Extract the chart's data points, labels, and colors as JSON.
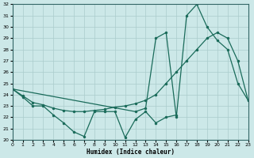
{
  "xlabel": "Humidex (Indice chaleur)",
  "background_color": "#cce8e8",
  "grid_color": "#aacccc",
  "line_color": "#1a6b5a",
  "ylim": [
    20,
    32
  ],
  "xlim": [
    0,
    23
  ],
  "s1_x": [
    0,
    1,
    2,
    3,
    4,
    5,
    6,
    7,
    8,
    9,
    10,
    11,
    12,
    13,
    14,
    15,
    16
  ],
  "s1_y": [
    24.5,
    23.8,
    23.0,
    23.0,
    22.2,
    21.5,
    20.7,
    20.3,
    22.5,
    22.5,
    22.5,
    20.2,
    21.8,
    22.5,
    21.5,
    22.0,
    22.2
  ],
  "s2_x": [
    0,
    12,
    13,
    14,
    15,
    16,
    17,
    18,
    19,
    20,
    21,
    22,
    23
  ],
  "s2_y": [
    24.5,
    22.5,
    22.8,
    29.0,
    29.5,
    22.0,
    31.0,
    32.0,
    30.0,
    28.8,
    28.0,
    25.0,
    23.5
  ],
  "s3_x": [
    0,
    1,
    2,
    3,
    4,
    5,
    6,
    7,
    8,
    9,
    10,
    11,
    12,
    13,
    14,
    15,
    16,
    17,
    18,
    19,
    20,
    21,
    22,
    23
  ],
  "s3_y": [
    24.5,
    23.9,
    23.3,
    23.1,
    22.8,
    22.6,
    22.5,
    22.5,
    22.6,
    22.7,
    22.9,
    23.0,
    23.2,
    23.5,
    24.0,
    25.0,
    26.0,
    27.0,
    28.0,
    29.0,
    29.5,
    29.0,
    27.0,
    23.5
  ]
}
